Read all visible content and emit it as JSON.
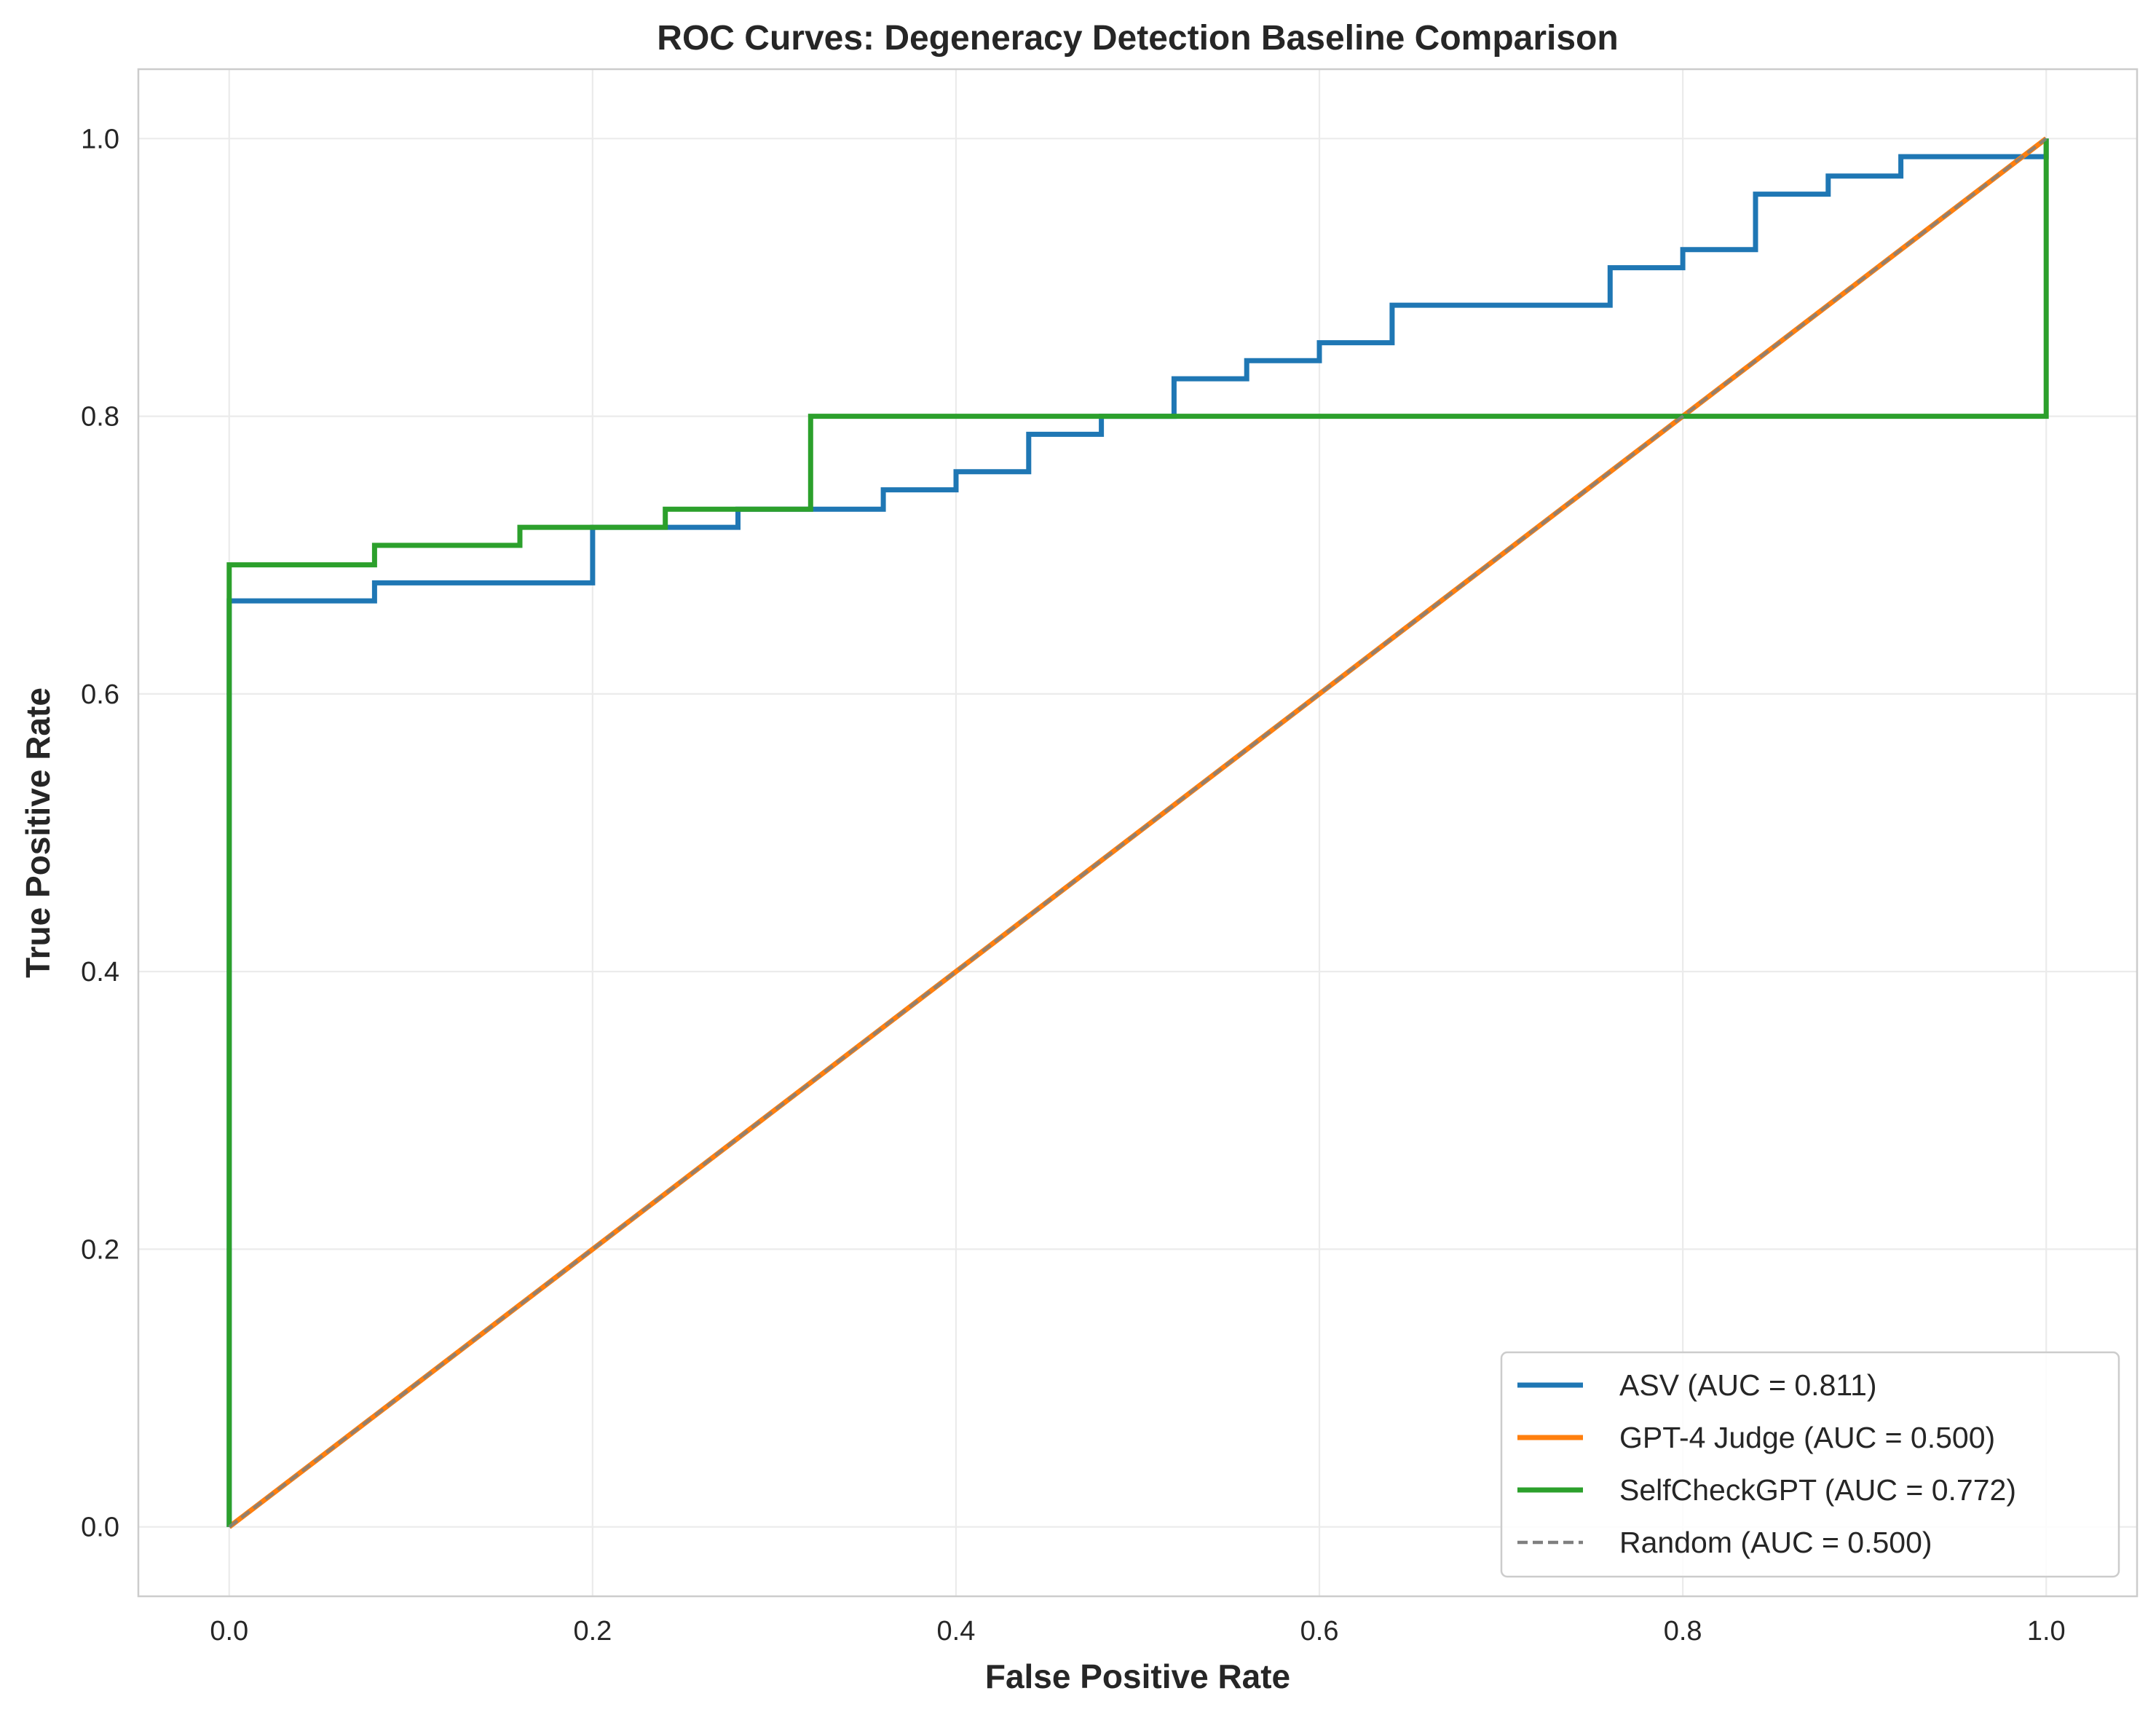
{
  "chart_data": {
    "type": "line",
    "title": "ROC Curves: Degeneracy Detection Baseline Comparison",
    "xlabel": "False Positive Rate",
    "ylabel": "True Positive Rate",
    "xlim": [
      -0.05,
      1.05
    ],
    "ylim": [
      -0.05,
      1.05
    ],
    "xticks": [
      "0.0",
      "0.2",
      "0.4",
      "0.6",
      "0.8",
      "1.0"
    ],
    "yticks": [
      "0.0",
      "0.2",
      "0.4",
      "0.6",
      "0.8",
      "1.0"
    ],
    "grid": true,
    "legend_position": "lower right",
    "series": [
      {
        "name": "ASV (AUC = 0.811)",
        "color": "#1f77b4",
        "style": "solid",
        "step": true,
        "x": [
          0.0,
          0.0,
          0.08,
          0.08,
          0.2,
          0.2,
          0.28,
          0.28,
          0.36,
          0.36,
          0.4,
          0.4,
          0.44,
          0.44,
          0.48,
          0.48,
          0.52,
          0.52,
          0.56,
          0.56,
          0.6,
          0.6,
          0.64,
          0.64,
          0.76,
          0.76,
          0.8,
          0.8,
          0.84,
          0.84,
          0.88,
          0.88,
          0.92,
          0.92,
          1.0,
          1.0
        ],
        "y": [
          0.0,
          0.667,
          0.667,
          0.68,
          0.68,
          0.72,
          0.72,
          0.733,
          0.733,
          0.747,
          0.747,
          0.76,
          0.76,
          0.787,
          0.787,
          0.8,
          0.8,
          0.827,
          0.827,
          0.84,
          0.84,
          0.853,
          0.853,
          0.88,
          0.88,
          0.907,
          0.907,
          0.92,
          0.92,
          0.96,
          0.96,
          0.973,
          0.973,
          0.987,
          0.987,
          1.0
        ]
      },
      {
        "name": "GPT-4 Judge (AUC = 0.500)",
        "color": "#ff7f0e",
        "style": "solid",
        "step": false,
        "x": [
          0.0,
          1.0
        ],
        "y": [
          0.0,
          1.0
        ]
      },
      {
        "name": "SelfCheckGPT (AUC = 0.772)",
        "color": "#2ca02c",
        "style": "solid",
        "step": true,
        "x": [
          0.0,
          0.0,
          0.08,
          0.08,
          0.16,
          0.16,
          0.24,
          0.24,
          0.32,
          0.32,
          1.0,
          1.0
        ],
        "y": [
          0.0,
          0.693,
          0.693,
          0.707,
          0.707,
          0.72,
          0.72,
          0.733,
          0.733,
          0.8,
          0.8,
          1.0
        ]
      },
      {
        "name": "Random (AUC = 0.500)",
        "color": "#7f7f7f",
        "style": "dashed",
        "step": false,
        "x": [
          0.0,
          1.0
        ],
        "y": [
          0.0,
          1.0
        ]
      }
    ]
  }
}
